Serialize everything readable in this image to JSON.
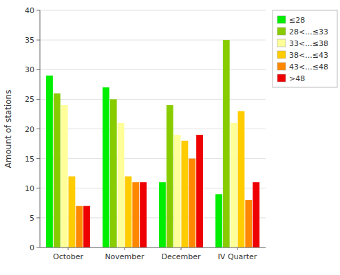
{
  "chart_data": {
    "type": "bar",
    "categories": [
      "October",
      "November",
      "December",
      "IV Quarter"
    ],
    "series": [
      {
        "name": "≤28",
        "color": "#00ee00",
        "values": [
          29,
          27,
          11,
          9
        ]
      },
      {
        "name": "28<...≤33",
        "color": "#88cc00",
        "values": [
          26,
          25,
          24,
          35
        ]
      },
      {
        "name": "33<...≤38",
        "color": "#ffff99",
        "values": [
          24,
          21,
          19,
          21
        ]
      },
      {
        "name": "38<...≤43",
        "color": "#ffcc00",
        "values": [
          12,
          12,
          18,
          23
        ]
      },
      {
        "name": "43<...≤48",
        "color": "#ff8800",
        "values": [
          7,
          11,
          15,
          8
        ]
      },
      {
        "name": ">48",
        "color": "#ee0000",
        "values": [
          7,
          11,
          19,
          11
        ]
      }
    ],
    "ylabel": "Amount of stations",
    "ylim": [
      0,
      40
    ],
    "yticks": [
      0,
      5,
      10,
      15,
      20,
      25,
      30,
      35,
      40
    ],
    "grid": true,
    "legend": "upper right"
  }
}
